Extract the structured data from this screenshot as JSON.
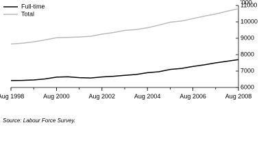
{
  "chart_data": {
    "type": "line",
    "y_unit_label": "'000",
    "x": [
      1998,
      1998.5,
      1999,
      1999.5,
      2000,
      2000.5,
      2001,
      2001.5,
      2002,
      2002.5,
      2003,
      2003.5,
      2004,
      2004.5,
      2005,
      2005.5,
      2006,
      2006.5,
      2007,
      2007.5,
      2008
    ],
    "series": [
      {
        "name": "Full-time",
        "color": "#000000",
        "values": [
          6420,
          6430,
          6460,
          6520,
          6630,
          6650,
          6600,
          6580,
          6640,
          6680,
          6740,
          6790,
          6900,
          6960,
          7100,
          7160,
          7280,
          7380,
          7500,
          7600,
          7700
        ]
      },
      {
        "name": "Total",
        "color": "#bbbbbb",
        "values": [
          8650,
          8700,
          8780,
          8900,
          9030,
          9050,
          9080,
          9120,
          9250,
          9350,
          9480,
          9530,
          9640,
          9800,
          9980,
          10050,
          10200,
          10350,
          10480,
          10650,
          10800
        ]
      }
    ],
    "xlim": [
      1998,
      2008
    ],
    "xticks": [
      {
        "value": 1998,
        "label": "Aug 1998"
      },
      {
        "value": 2000,
        "label": "Aug 2000"
      },
      {
        "value": 2002,
        "label": "Aug 2002"
      },
      {
        "value": 2004,
        "label": "Aug 2004"
      },
      {
        "value": 2006,
        "label": "Aug 2006"
      },
      {
        "value": 2008,
        "label": "Aug 2008"
      }
    ],
    "ylim": [
      6000,
      11000
    ],
    "yticks": [
      6000,
      7000,
      8000,
      9000,
      10000,
      11000
    ],
    "y_axis_side": "right",
    "legend": "top-left",
    "source": "Source: Labour Force Survey."
  }
}
